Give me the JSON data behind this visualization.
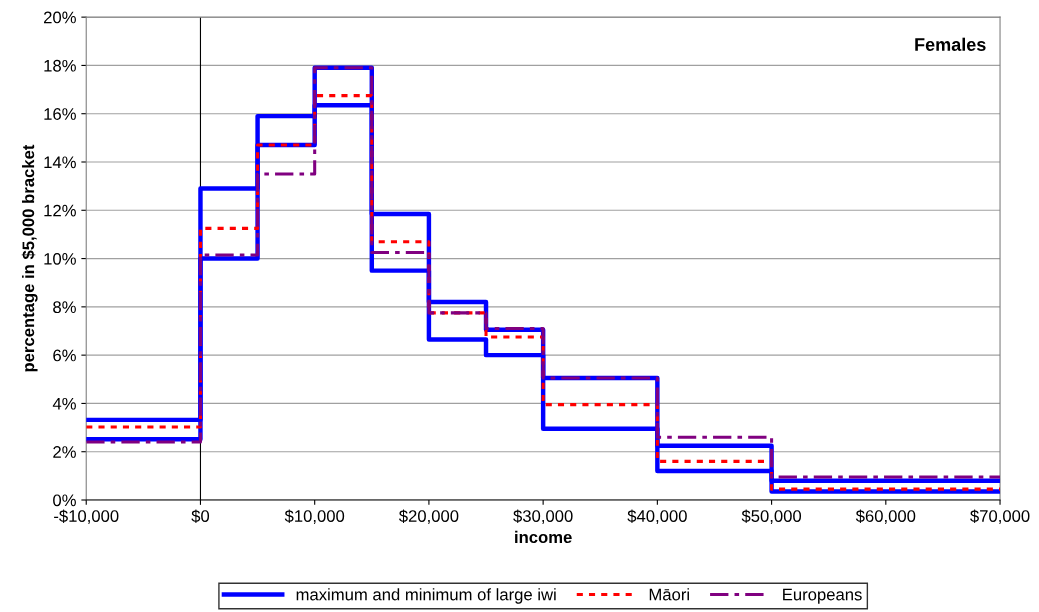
{
  "chart_data": {
    "type": "step",
    "xlabel": "income",
    "ylabel": "percentage in $5,000 bracket",
    "annotations": [
      "Females"
    ],
    "x": [
      -10000,
      0,
      5000,
      10000,
      15000,
      20000,
      25000,
      30000,
      40000,
      50000,
      70000
    ],
    "series": [
      {
        "name": "maximum and minimum of large iwi",
        "color": "#0000ff",
        "line_style": "solid",
        "values": [
          3.32,
          12.9,
          15.9,
          17.9,
          11.85,
          8.2,
          7.05,
          5.05,
          2.25,
          0.8,
          0.8
        ]
      },
      {
        "color": "#0000ff",
        "line_style": "solid",
        "values": [
          2.52,
          10.0,
          14.7,
          16.35,
          9.5,
          6.65,
          6.0,
          2.95,
          1.2,
          0.35,
          0.35
        ]
      },
      {
        "name": "Māori",
        "color": "#ff0000",
        "line_style": "dotted",
        "values": [
          3.02,
          11.25,
          14.7,
          16.75,
          10.7,
          7.75,
          6.75,
          3.95,
          1.6,
          0.45,
          0.45
        ]
      },
      {
        "name": "Europeans",
        "color": "#800080",
        "line_style": "dashdot",
        "values": [
          2.4,
          10.15,
          13.5,
          17.9,
          10.25,
          7.75,
          7.1,
          5.05,
          2.6,
          0.95,
          0.95
        ]
      }
    ],
    "xlim": [
      -10000,
      70000
    ],
    "xticks": [
      {
        "value": -10000,
        "label": "-$10,000"
      },
      {
        "value": 0,
        "label": "$0"
      },
      {
        "value": 10000,
        "label": "$10,000"
      },
      {
        "value": 20000,
        "label": "$20,000"
      },
      {
        "value": 30000,
        "label": "$30,000"
      },
      {
        "value": 40000,
        "label": "$40,000"
      },
      {
        "value": 50000,
        "label": "$50,000"
      },
      {
        "value": 60000,
        "label": "$60,000"
      },
      {
        "value": 70000,
        "label": "$70,000"
      }
    ],
    "ylim": [
      0,
      20
    ],
    "yticks": [
      {
        "value": 0,
        "label": "0%"
      },
      {
        "value": 2,
        "label": "2%"
      },
      {
        "value": 4,
        "label": "4%"
      },
      {
        "value": 6,
        "label": "6%"
      },
      {
        "value": 8,
        "label": "8%"
      },
      {
        "value": 10,
        "label": "10%"
      },
      {
        "value": 12,
        "label": "12%"
      },
      {
        "value": 14,
        "label": "14%"
      },
      {
        "value": 16,
        "label": "16%"
      },
      {
        "value": 18,
        "label": "18%"
      },
      {
        "value": 20,
        "label": "20%"
      }
    ],
    "ref_lines": [
      {
        "axis": "x",
        "value": 0,
        "color": "#000000"
      }
    ],
    "grid": "y",
    "legend": "bottom"
  }
}
